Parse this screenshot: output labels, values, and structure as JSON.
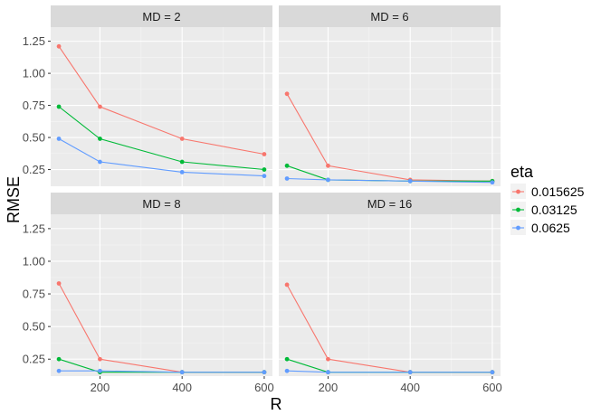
{
  "chart_data": {
    "type": "line",
    "xlabel": "R",
    "ylabel": "RMSE",
    "x_ticks": [
      200,
      400,
      600
    ],
    "y_ticks": [
      0.25,
      0.5,
      0.75,
      1.0,
      1.25
    ],
    "y_tick_labels": [
      "0.25",
      "0.50",
      "0.75",
      "1.00",
      "1.25"
    ],
    "xlim": [
      80,
      620
    ],
    "ylim": [
      0.12,
      1.36
    ],
    "legend": {
      "title": "eta",
      "placement": "right",
      "entries": [
        "0.015625",
        "0.03125",
        "0.0625"
      ]
    },
    "colors": {
      "0.015625": "#F8766D",
      "0.03125": "#00BA38",
      "0.0625": "#619CFF"
    },
    "panels": [
      {
        "strip": "MD = 2",
        "x": [
          100,
          200,
          400,
          600
        ],
        "series": [
          {
            "name": "0.015625",
            "values": [
              1.21,
              0.74,
              0.49,
              0.37
            ]
          },
          {
            "name": "0.03125",
            "values": [
              0.74,
              0.49,
              0.31,
              0.25
            ]
          },
          {
            "name": "0.0625",
            "values": [
              0.49,
              0.31,
              0.23,
              0.2
            ]
          }
        ]
      },
      {
        "strip": "MD = 6",
        "x": [
          100,
          200,
          400,
          600
        ],
        "series": [
          {
            "name": "0.015625",
            "values": [
              0.84,
              0.28,
              0.17,
              0.16
            ]
          },
          {
            "name": "0.03125",
            "values": [
              0.28,
              0.17,
              0.16,
              0.16
            ]
          },
          {
            "name": "0.0625",
            "values": [
              0.18,
              0.17,
              0.16,
              0.15
            ]
          }
        ]
      },
      {
        "strip": "MD = 8",
        "x": [
          100,
          200,
          400,
          600
        ],
        "series": [
          {
            "name": "0.015625",
            "values": [
              0.83,
              0.25,
              0.15,
              0.15
            ]
          },
          {
            "name": "0.03125",
            "values": [
              0.25,
              0.15,
              0.15,
              0.15
            ]
          },
          {
            "name": "0.0625",
            "values": [
              0.16,
              0.16,
              0.15,
              0.15
            ]
          }
        ]
      },
      {
        "strip": "MD = 16",
        "x": [
          100,
          200,
          400,
          600
        ],
        "series": [
          {
            "name": "0.015625",
            "values": [
              0.82,
              0.25,
              0.15,
              0.15
            ]
          },
          {
            "name": "0.03125",
            "values": [
              0.25,
              0.15,
              0.15,
              0.15
            ]
          },
          {
            "name": "0.0625",
            "values": [
              0.16,
              0.15,
              0.15,
              0.15
            ]
          }
        ]
      }
    ]
  }
}
